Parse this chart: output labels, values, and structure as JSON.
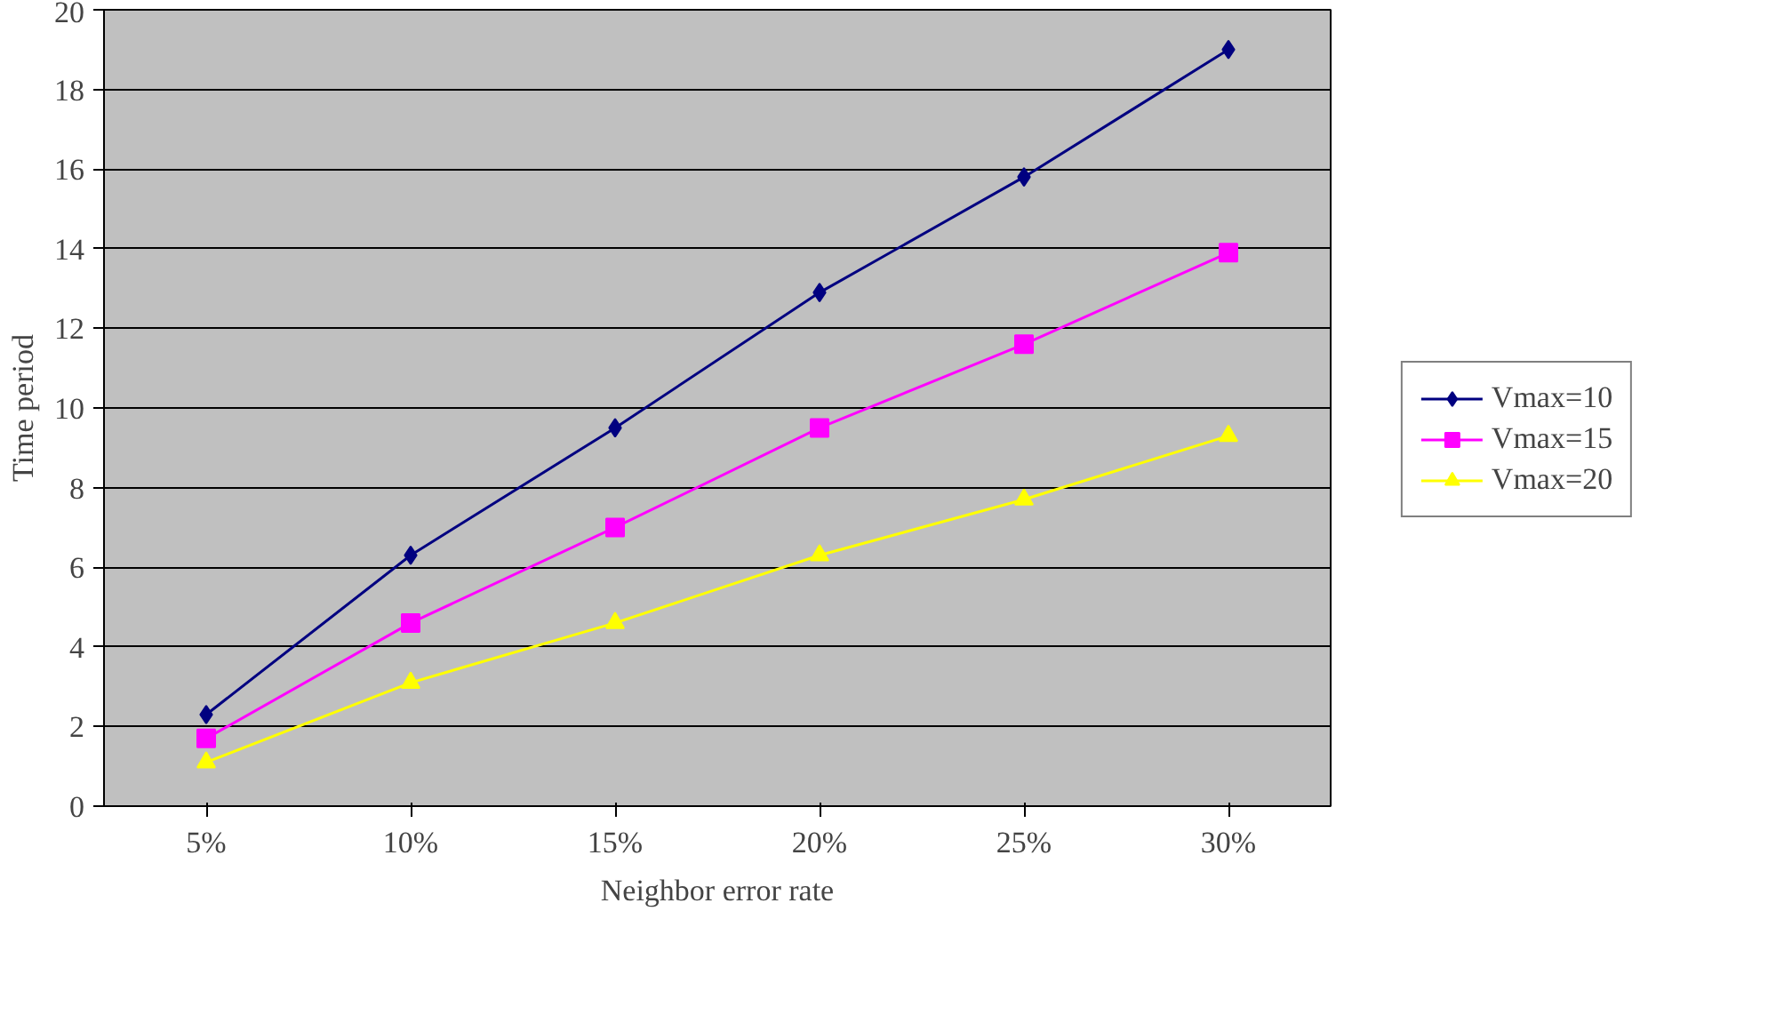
{
  "chart_data": {
    "type": "line",
    "xlabel": "Neighbor error rate",
    "ylabel": "Time period",
    "categories": [
      "5%",
      "10%",
      "15%",
      "20%",
      "25%",
      "30%"
    ],
    "series": [
      {
        "name": "Vmax=10",
        "color": "#000080",
        "marker": "diamond",
        "values": [
          2.3,
          6.3,
          9.5,
          12.9,
          15.8,
          19.0
        ]
      },
      {
        "name": "Vmax=15",
        "color": "#ff00ff",
        "marker": "square",
        "values": [
          1.7,
          4.6,
          7.0,
          9.5,
          11.6,
          13.9
        ]
      },
      {
        "name": "Vmax=20",
        "color": "#ffff00",
        "marker": "triangle",
        "values": [
          1.1,
          3.1,
          4.6,
          6.3,
          7.7,
          9.3
        ]
      }
    ],
    "ylim": [
      0,
      20
    ],
    "yticks": [
      0,
      2,
      4,
      6,
      8,
      10,
      12,
      14,
      16,
      18,
      20
    ],
    "grid": "y",
    "legend": "right"
  }
}
